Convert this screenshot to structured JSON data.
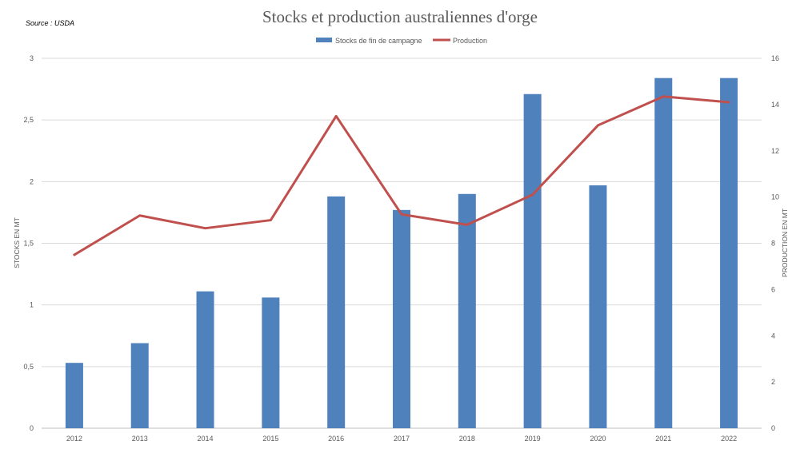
{
  "chart_data": {
    "type": "bar",
    "title": "Stocks et production australiennes d'orge",
    "source": "Source : USDA",
    "categories": [
      "2012",
      "2013",
      "2014",
      "2015",
      "2016",
      "2017",
      "2018",
      "2019",
      "2020",
      "2021",
      "2022"
    ],
    "series": [
      {
        "name": "Stocks de fin de campagne",
        "type": "bar",
        "axis": "left",
        "color": "#4f81bd",
        "values": [
          0.53,
          0.69,
          1.11,
          1.06,
          1.88,
          1.77,
          1.9,
          2.71,
          1.97,
          2.84,
          2.84
        ]
      },
      {
        "name": "Production",
        "type": "line",
        "axis": "right",
        "color": "#c0504d",
        "values": [
          7.5,
          9.2,
          8.65,
          9.0,
          13.5,
          9.25,
          8.8,
          10.1,
          13.1,
          14.35,
          14.1
        ]
      }
    ],
    "ylabel": "STOCKS EN MT",
    "ylim": [
      0,
      3
    ],
    "yticks": [
      "0",
      "0,5",
      "1",
      "1,5",
      "2",
      "2,5",
      "3"
    ],
    "y2label": "PRODUCTION EN MT",
    "y2lim": [
      0,
      16
    ],
    "y2ticks": [
      "0",
      "2",
      "4",
      "6",
      "8",
      "10",
      "12",
      "14",
      "16"
    ],
    "grid": true,
    "legend": "top-center"
  }
}
